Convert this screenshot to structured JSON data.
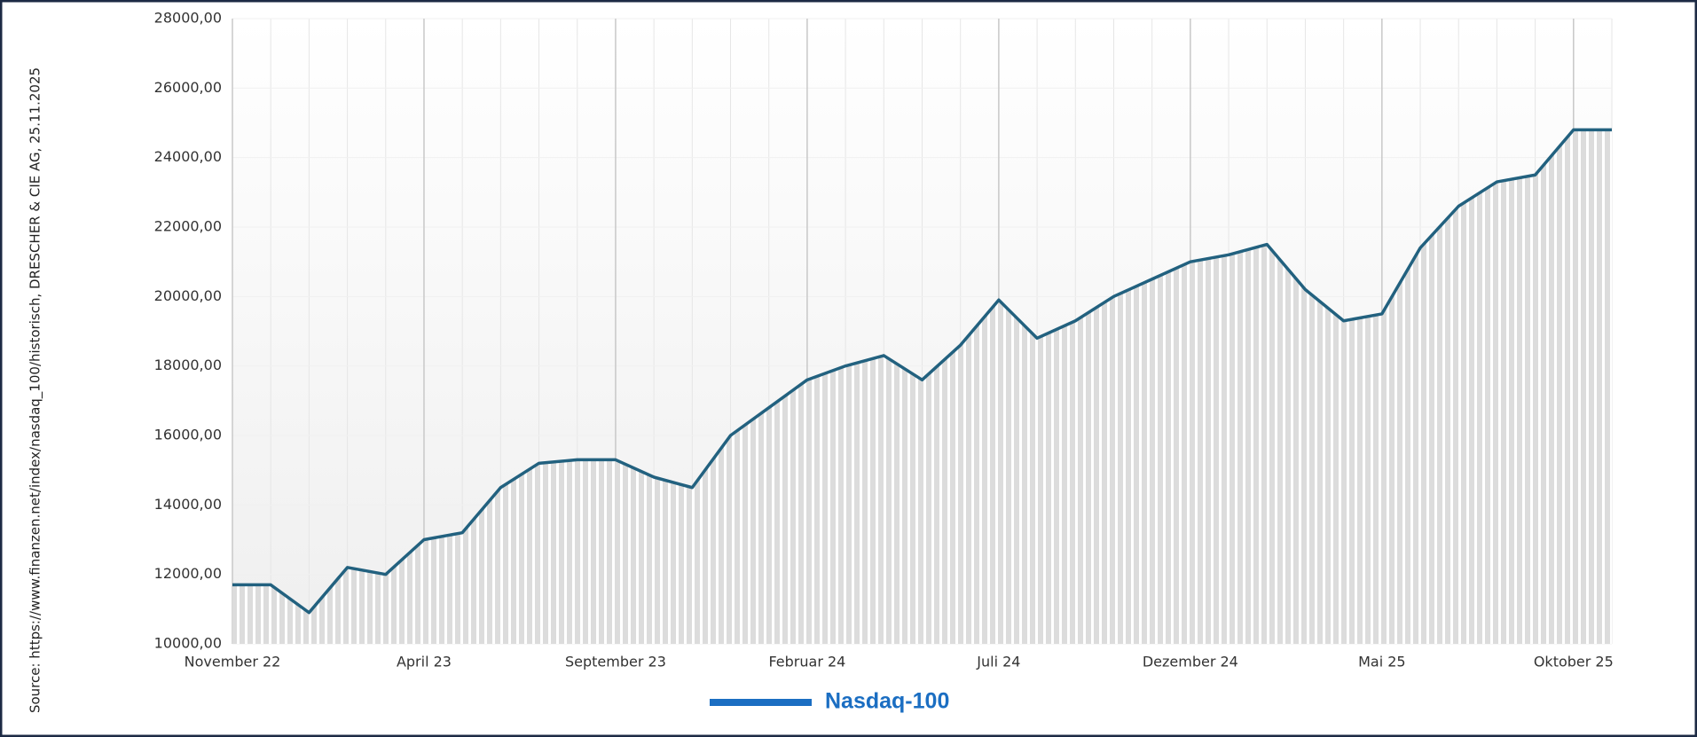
{
  "chart_data": {
    "type": "line",
    "source": "Source: https://www.finanzen.net/index/nasdaq_100/historisch, DRESCHER & CIE AG, 25.11.2025",
    "x": [
      "2022-11",
      "2022-12",
      "2023-01",
      "2023-02",
      "2023-03",
      "2023-04",
      "2023-05",
      "2023-06",
      "2023-07",
      "2023-08",
      "2023-09",
      "2023-10",
      "2023-11",
      "2023-12",
      "2024-01",
      "2024-02",
      "2024-03",
      "2024-04",
      "2024-05",
      "2024-06",
      "2024-07",
      "2024-08",
      "2024-09",
      "2024-10",
      "2024-11",
      "2024-12",
      "2025-01",
      "2025-02",
      "2025-03",
      "2025-04",
      "2025-05",
      "2025-06",
      "2025-07",
      "2025-08",
      "2025-09",
      "2025-10",
      "2025-11"
    ],
    "series": [
      {
        "name": "Nasdaq-100",
        "color": "#22617f",
        "values": [
          11700,
          11700,
          10900,
          12200,
          12000,
          13000,
          13200,
          14500,
          15200,
          15300,
          15300,
          14800,
          14500,
          16000,
          16800,
          17600,
          18000,
          18300,
          17600,
          18600,
          19900,
          18800,
          19300,
          20000,
          20500,
          21000,
          21200,
          21500,
          20200,
          19300,
          19500,
          21400,
          22600,
          23300,
          23500,
          24800,
          24800
        ]
      }
    ],
    "ylim": [
      10000,
      28000
    ],
    "yticks": [
      {
        "value": 10000,
        "label": "10000,00"
      },
      {
        "value": 12000,
        "label": "12000,00"
      },
      {
        "value": 14000,
        "label": "14000,00"
      },
      {
        "value": 16000,
        "label": "16000,00"
      },
      {
        "value": 18000,
        "label": "18000,00"
      },
      {
        "value": 20000,
        "label": "20000,00"
      },
      {
        "value": 22000,
        "label": "22000,00"
      },
      {
        "value": 24000,
        "label": "24000,00"
      },
      {
        "value": 26000,
        "label": "26000,00"
      },
      {
        "value": 28000,
        "label": "28000,00"
      }
    ],
    "xticks": [
      {
        "value": "2022-11",
        "label": "November 22"
      },
      {
        "value": "2023-04",
        "label": "April 23"
      },
      {
        "value": "2023-09",
        "label": "September 23"
      },
      {
        "value": "2024-02",
        "label": "Februar 24"
      },
      {
        "value": "2024-07",
        "label": "Juli 24"
      },
      {
        "value": "2024-12",
        "label": "Dezember 24"
      },
      {
        "value": "2025-05",
        "label": "Mai 25"
      },
      {
        "value": "2025-10",
        "label": "Oktober 25"
      }
    ],
    "grid": true,
    "legend": "bottom"
  }
}
